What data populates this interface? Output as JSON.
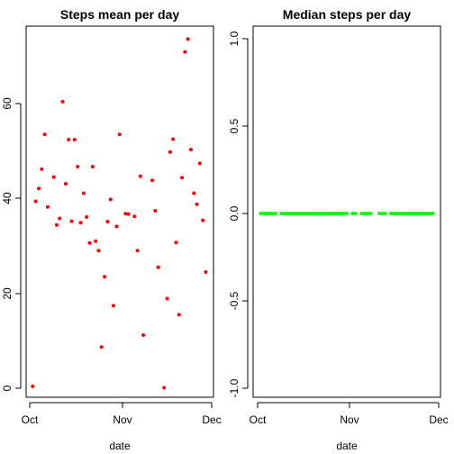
{
  "chart_data": [
    {
      "type": "scatter",
      "title": "Steps mean per day",
      "xlabel": "date",
      "ylabel": "",
      "x_ticks": [
        "Oct",
        "Nov",
        "Dec"
      ],
      "y_ticks": [
        "0",
        "20",
        "40",
        "60"
      ],
      "ylim": [
        -1,
        74
      ],
      "point_color": "#ff0000",
      "x": [
        "2012-10-02",
        "2012-10-03",
        "2012-10-04",
        "2012-10-05",
        "2012-10-06",
        "2012-10-07",
        "2012-10-09",
        "2012-10-10",
        "2012-10-11",
        "2012-10-12",
        "2012-10-13",
        "2012-10-14",
        "2012-10-15",
        "2012-10-16",
        "2012-10-17",
        "2012-10-18",
        "2012-10-19",
        "2012-10-20",
        "2012-10-21",
        "2012-10-22",
        "2012-10-23",
        "2012-10-24",
        "2012-10-25",
        "2012-10-26",
        "2012-10-27",
        "2012-10-28",
        "2012-10-29",
        "2012-10-30",
        "2012-10-31",
        "2012-11-02",
        "2012-11-03",
        "2012-11-05",
        "2012-11-06",
        "2012-11-07",
        "2012-11-08",
        "2012-11-11",
        "2012-11-12",
        "2012-11-13",
        "2012-11-15",
        "2012-11-16",
        "2012-11-17",
        "2012-11-18",
        "2012-11-19",
        "2012-11-20",
        "2012-11-21",
        "2012-11-22",
        "2012-11-23",
        "2012-11-24",
        "2012-11-25",
        "2012-11-26",
        "2012-11-27",
        "2012-11-28",
        "2012-11-29"
      ],
      "y": [
        0.4,
        39.4,
        42.1,
        46.2,
        53.5,
        38.2,
        44.5,
        34.4,
        35.8,
        60.4,
        43.1,
        52.4,
        35.2,
        52.4,
        46.7,
        34.9,
        41.1,
        36.1,
        30.6,
        46.7,
        31.0,
        29.0,
        8.7,
        23.5,
        35.1,
        39.8,
        17.4,
        34.1,
        53.5,
        36.8,
        36.7,
        36.2,
        29.0,
        44.7,
        11.2,
        43.8,
        37.4,
        25.5,
        0.1,
        18.9,
        49.8,
        52.5,
        30.7,
        15.5,
        44.4,
        70.9,
        73.6,
        50.3,
        41.1,
        38.8,
        47.4,
        35.4,
        24.5
      ]
    },
    {
      "type": "scatter",
      "title": "Median steps per day",
      "xlabel": "date",
      "ylabel": "",
      "x_ticks": [
        "Oct",
        "Nov",
        "Dec"
      ],
      "y_ticks": [
        "-1.0",
        "-0.5",
        "0.0",
        "0.5",
        "1.0"
      ],
      "ylim": [
        -1.05,
        1.05
      ],
      "point_color": "#00ff00",
      "x": [
        "2012-10-02",
        "2012-10-03",
        "2012-10-04",
        "2012-10-05",
        "2012-10-06",
        "2012-10-07",
        "2012-10-09",
        "2012-10-10",
        "2012-10-11",
        "2012-10-12",
        "2012-10-13",
        "2012-10-14",
        "2012-10-15",
        "2012-10-16",
        "2012-10-17",
        "2012-10-18",
        "2012-10-19",
        "2012-10-20",
        "2012-10-21",
        "2012-10-22",
        "2012-10-23",
        "2012-10-24",
        "2012-10-25",
        "2012-10-26",
        "2012-10-27",
        "2012-10-28",
        "2012-10-29",
        "2012-10-30",
        "2012-10-31",
        "2012-11-02",
        "2012-11-03",
        "2012-11-05",
        "2012-11-06",
        "2012-11-07",
        "2012-11-08",
        "2012-11-11",
        "2012-11-12",
        "2012-11-13",
        "2012-11-15",
        "2012-11-16",
        "2012-11-17",
        "2012-11-18",
        "2012-11-19",
        "2012-11-20",
        "2012-11-21",
        "2012-11-22",
        "2012-11-23",
        "2012-11-24",
        "2012-11-25",
        "2012-11-26",
        "2012-11-27",
        "2012-11-28",
        "2012-11-29"
      ],
      "y": [
        0,
        0,
        0,
        0,
        0,
        0,
        0,
        0,
        0,
        0,
        0,
        0,
        0,
        0,
        0,
        0,
        0,
        0,
        0,
        0,
        0,
        0,
        0,
        0,
        0,
        0,
        0,
        0,
        0,
        0,
        0,
        0,
        0,
        0,
        0,
        0,
        0,
        0,
        0,
        0,
        0,
        0,
        0,
        0,
        0,
        0,
        0,
        0,
        0,
        0,
        0,
        0,
        0
      ]
    }
  ]
}
